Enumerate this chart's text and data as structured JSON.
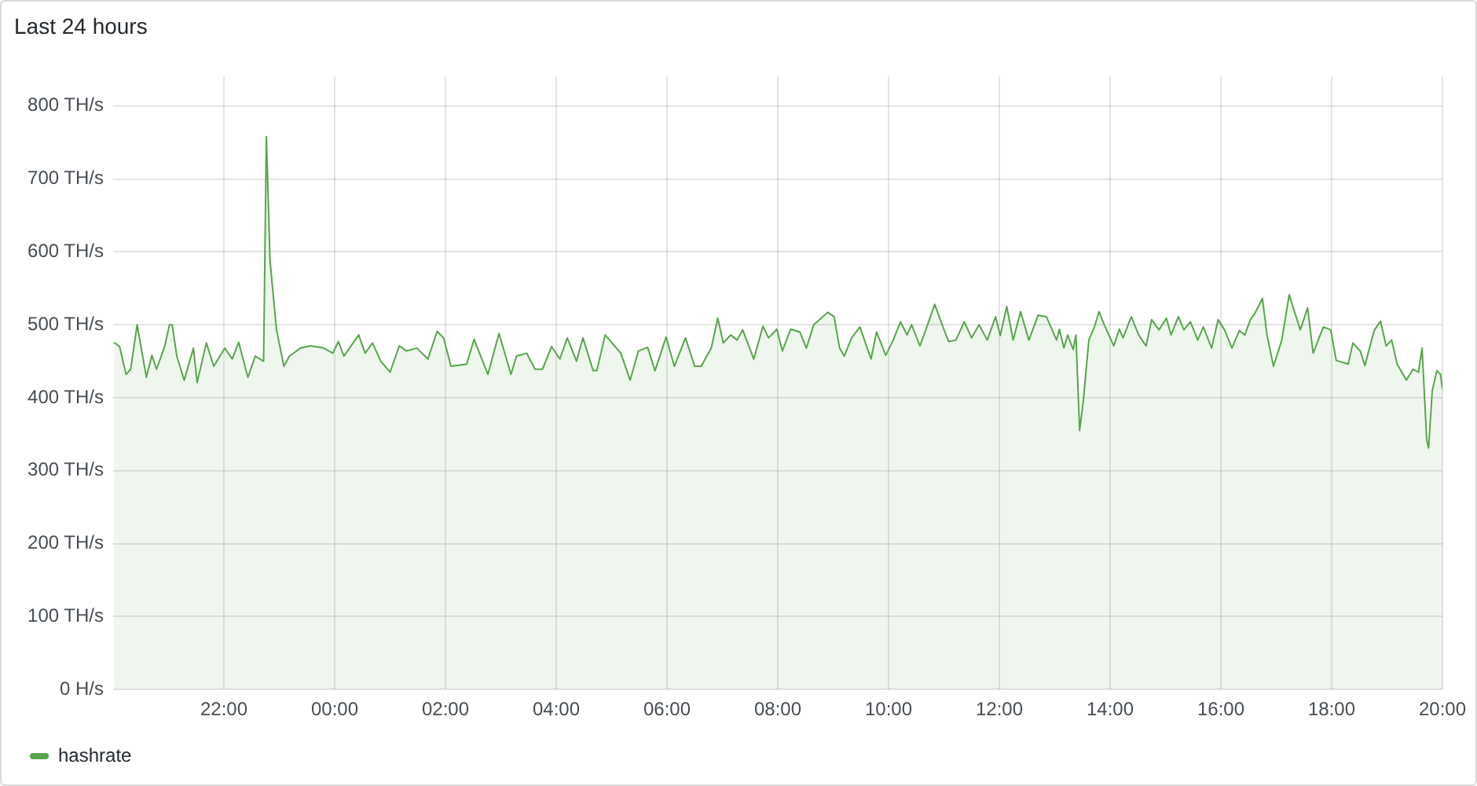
{
  "chart_data": {
    "type": "area",
    "title": "Last 24 hours",
    "xlim": [
      "--01-01T20:00",
      "--01-02T20:00"
    ],
    "xticks": [
      {
        "value": "--01-01T22:00",
        "label": "22:00"
      },
      {
        "value": "--01-02T00:00",
        "label": "00:00"
      },
      {
        "value": "--01-02T02:00",
        "label": "02:00"
      },
      {
        "value": "--01-02T04:00",
        "label": "04:00"
      },
      {
        "value": "--01-02T06:00",
        "label": "06:00"
      },
      {
        "value": "--01-02T08:00",
        "label": "08:00"
      },
      {
        "value": "--01-02T10:00",
        "label": "10:00"
      },
      {
        "value": "--01-02T12:00",
        "label": "12:00"
      },
      {
        "value": "--01-02T14:00",
        "label": "14:00"
      },
      {
        "value": "--01-02T16:00",
        "label": "16:00"
      },
      {
        "value": "--01-02T18:00",
        "label": "18:00"
      },
      {
        "value": "--01-02T20:00",
        "label": "20:00"
      }
    ],
    "ylim": [
      0,
      840
    ],
    "yticks": [
      {
        "value": 0,
        "label": "0 H/s"
      },
      {
        "value": 100,
        "label": "100 TH/s"
      },
      {
        "value": 200,
        "label": "200 TH/s"
      },
      {
        "value": 300,
        "label": "300 TH/s"
      },
      {
        "value": 400,
        "label": "400 TH/s"
      },
      {
        "value": 500,
        "label": "500 TH/s"
      },
      {
        "value": 600,
        "label": "600 TH/s"
      },
      {
        "value": 700,
        "label": "700 TH/s"
      },
      {
        "value": 800,
        "label": "800 TH/s"
      }
    ],
    "grid": true,
    "legend": "bottom left",
    "marker": "none",
    "series": [
      {
        "name": "hashrate",
        "color": "#56a64b",
        "x": [
          "--01-01T20:01",
          "--01-01T20:07",
          "--01-01T20:14",
          "--01-01T20:19",
          "--01-01T20:26",
          "--01-01T20:36",
          "--01-01T20:42",
          "--01-01T20:47",
          "--01-01T20:56",
          "--01-01T21:01",
          "--01-01T21:04",
          "--01-01T21:09",
          "--01-01T21:17",
          "--01-01T21:27",
          "--01-01T21:31",
          "--01-01T21:41",
          "--01-01T21:49",
          "--01-01T22:01",
          "--01-01T22:09",
          "--01-01T22:16",
          "--01-01T22:26",
          "--01-01T22:34",
          "--01-01T22:43",
          "--01-01T22:46",
          "--01-01T22:50",
          "--01-01T22:57",
          "--01-01T23:05",
          "--01-01T23:11",
          "--01-01T23:23",
          "--01-01T23:34",
          "--01-01T23:48",
          "--01-01T23:58",
          "--01-02T00:04",
          "--01-02T00:10",
          "--01-02T00:26",
          "--01-02T00:33",
          "--01-02T00:41",
          "--01-02T00:50",
          "--01-02T01:00",
          "--01-02T01:10",
          "--01-02T01:18",
          "--01-02T01:29",
          "--01-02T01:41",
          "--01-02T01:51",
          "--01-02T01:58",
          "--01-02T02:06",
          "--01-02T02:23",
          "--01-02T02:31",
          "--01-02T02:46",
          "--01-02T02:58",
          "--01-02T03:11",
          "--01-02T03:17",
          "--01-02T03:28",
          "--01-02T03:37",
          "--01-02T03:45",
          "--01-02T03:55",
          "--01-02T04:04",
          "--01-02T04:12",
          "--01-02T04:22",
          "--01-02T04:29",
          "--01-02T04:40",
          "--01-02T04:44",
          "--01-02T04:53",
          "--01-02T05:10",
          "--01-02T05:20",
          "--01-02T05:29",
          "--01-02T05:39",
          "--01-02T05:47",
          "--01-02T05:59",
          "--01-02T06:08",
          "--01-02T06:20",
          "--01-02T06:30",
          "--01-02T06:37",
          "--01-02T06:48",
          "--01-02T06:55",
          "--01-02T07:01",
          "--01-02T07:09",
          "--01-02T07:16",
          "--01-02T07:22",
          "--01-02T07:34",
          "--01-02T07:44",
          "--01-02T07:50",
          "--01-02T07:59",
          "--01-02T08:05",
          "--01-02T08:14",
          "--01-02T08:24",
          "--01-02T08:31",
          "--01-02T08:39",
          "--01-02T08:54",
          "--01-02T09:01",
          "--01-02T09:07",
          "--01-02T09:12",
          "--01-02T09:20",
          "--01-02T09:29",
          "--01-02T09:41",
          "--01-02T09:47",
          "--01-02T09:57",
          "--01-02T10:05",
          "--01-02T10:13",
          "--01-02T10:20",
          "--01-02T10:25",
          "--01-02T10:34",
          "--01-02T10:42",
          "--01-02T10:50",
          "--01-02T10:56",
          "--01-02T11:05",
          "--01-02T11:13",
          "--01-02T11:22",
          "--01-02T11:30",
          "--01-02T11:38",
          "--01-02T11:47",
          "--01-02T11:56",
          "--01-02T12:01",
          "--01-02T12:08",
          "--01-02T12:15",
          "--01-02T12:23",
          "--01-02T12:32",
          "--01-02T12:42",
          "--01-02T12:51",
          "--01-02T13:02",
          "--01-02T13:05",
          "--01-02T13:10",
          "--01-02T13:14",
          "--01-02T13:20",
          "--01-02T13:23",
          "--01-02T13:27",
          "--01-02T13:31",
          "--01-02T13:37",
          "--01-02T13:43",
          "--01-02T13:48",
          "--01-02T13:54",
          "--01-02T14:04",
          "--01-02T14:10",
          "--01-02T14:14",
          "--01-02T14:23",
          "--01-02T14:31",
          "--01-02T14:39",
          "--01-02T14:45",
          "--01-02T14:53",
          "--01-02T15:01",
          "--01-02T15:06",
          "--01-02T15:14",
          "--01-02T15:20",
          "--01-02T15:27",
          "--01-02T15:35",
          "--01-02T15:41",
          "--01-02T15:50",
          "--01-02T15:57",
          "--01-02T16:04",
          "--01-02T16:12",
          "--01-02T16:20",
          "--01-02T16:26",
          "--01-02T16:32",
          "--01-02T16:37",
          "--01-02T16:45",
          "--01-02T16:50",
          "--01-02T16:57",
          "--01-02T17:06",
          "--01-02T17:14",
          "--01-02T17:26",
          "--01-02T17:34",
          "--01-02T17:40",
          "--01-02T17:51",
          "--01-02T17:59",
          "--01-02T18:05",
          "--01-02T18:18",
          "--01-02T18:23",
          "--01-02T18:31",
          "--01-02T18:36",
          "--01-02T18:46",
          "--01-02T18:53",
          "--01-02T18:59",
          "--01-02T19:05",
          "--01-02T19:11",
          "--01-02T19:21",
          "--01-02T19:28",
          "--01-02T19:34",
          "--01-02T19:38",
          "--01-02T19:43",
          "--01-02T19:45",
          "--01-02T19:49",
          "--01-02T19:54",
          "--01-02T19:58",
          "--01-02T20:00"
        ],
        "values": [
          476,
          470,
          432,
          439,
          500,
          428,
          458,
          439,
          471,
          500,
          500,
          457,
          424,
          468,
          421,
          475,
          443,
          468,
          453,
          476,
          428,
          457,
          450,
          758,
          587,
          493,
          443,
          457,
          468,
          471,
          468,
          461,
          477,
          457,
          486,
          461,
          475,
          450,
          435,
          471,
          464,
          468,
          453,
          491,
          482,
          443,
          446,
          480,
          432,
          488,
          432,
          457,
          461,
          439,
          439,
          470,
          453,
          482,
          450,
          482,
          437,
          437,
          486,
          461,
          424,
          464,
          469,
          437,
          483,
          443,
          482,
          443,
          443,
          468,
          509,
          475,
          486,
          479,
          493,
          453,
          498,
          482,
          494,
          464,
          494,
          490,
          468,
          500,
          517,
          511,
          468,
          457,
          482,
          497,
          453,
          490,
          458,
          479,
          504,
          486,
          500,
          471,
          499,
          528,
          507,
          477,
          479,
          504,
          482,
          500,
          479,
          511,
          485,
          525,
          479,
          518,
          479,
          513,
          511,
          479,
          494,
          468,
          486,
          466,
          486,
          355,
          396,
          479,
          497,
          518,
          499,
          471,
          494,
          482,
          511,
          486,
          471,
          507,
          493,
          509,
          486,
          511,
          493,
          504,
          479,
          497,
          468,
          507,
          493,
          468,
          492,
          486,
          507,
          516,
          536,
          486,
          443,
          479,
          541,
          493,
          523,
          461,
          497,
          493,
          451,
          446,
          475,
          464,
          444,
          492,
          505,
          471,
          479,
          446,
          424,
          439,
          435,
          468,
          342,
          331,
          410,
          437,
          432,
          412
        ]
      }
    ]
  }
}
